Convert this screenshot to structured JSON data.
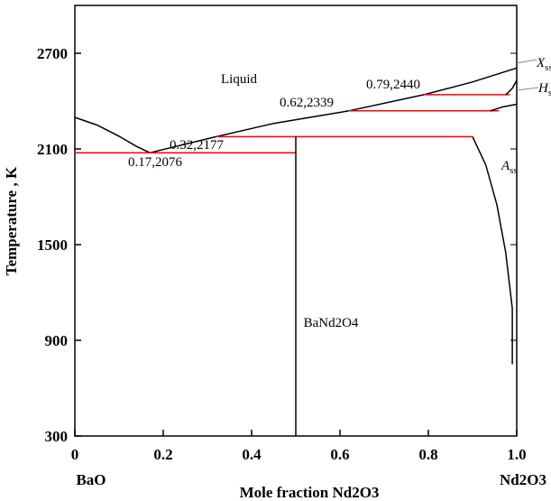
{
  "chart_data": {
    "type": "line",
    "x_label": "Mole fraction Nd2O3",
    "y_label": "Temperature , K",
    "end_labels": [
      "BaO",
      "Nd2O3"
    ],
    "xlim": [
      0,
      1
    ],
    "ylim": [
      300,
      3000
    ],
    "xticks": [
      0,
      0.2,
      0.4,
      0.6,
      0.8,
      {
        "value": 1,
        "label": "1.0"
      }
    ],
    "yticks": [
      300,
      900,
      1500,
      2100,
      2700
    ],
    "curves": [
      {
        "color": "#000000",
        "x": [
          0,
          0.05,
          0.1,
          0.14,
          0.17
        ],
        "values": [
          2298,
          2250,
          2180,
          2115,
          2076
        ]
      },
      {
        "color": "#000000",
        "x": [
          0.17,
          0.32,
          0.45,
          0.62,
          0.79,
          0.9,
          1
        ],
        "values": [
          2076,
          2177,
          2260,
          2339,
          2440,
          2520,
          2608
        ]
      },
      {
        "color": "#e01010",
        "x": [
          0,
          0.5
        ],
        "values": [
          2076,
          2076
        ]
      },
      {
        "color": "#e01010",
        "x": [
          0.32,
          0.9
        ],
        "values": [
          2177,
          2177
        ]
      },
      {
        "color": "#e01010",
        "x": [
          0.62,
          0.96
        ],
        "values": [
          2339,
          2339
        ]
      },
      {
        "color": "#e01010",
        "x": [
          0.79,
          0.985
        ],
        "values": [
          2440,
          2440
        ]
      },
      {
        "color": "#000000",
        "x": [
          0.5,
          0.5
        ],
        "values": [
          300,
          2177
        ]
      },
      {
        "color": "#000000",
        "x": [
          0.9,
          0.93,
          0.955,
          0.975,
          0.99,
          0.99
        ],
        "values": [
          2177,
          2000,
          1750,
          1450,
          1100,
          750
        ]
      },
      {
        "color": "#000000",
        "x": [
          0.94,
          0.97,
          1
        ],
        "values": [
          2339,
          2365,
          2380
        ]
      },
      {
        "color": "#000000",
        "x": [
          0.975,
          0.99,
          1
        ],
        "values": [
          2440,
          2480,
          2530
        ]
      }
    ],
    "annotations": [
      {
        "text": "Liquid"
      },
      {
        "text": "0.17,2076"
      },
      {
        "text": "0.32,2177"
      },
      {
        "text": "0.62,2339"
      },
      {
        "text": "0.79,2440"
      },
      {
        "text": "BaNd2O4"
      },
      {
        "text": "A",
        "sub": "ss"
      },
      {
        "text": "H",
        "sub": "ss"
      },
      {
        "text": "X",
        "sub": "ss"
      }
    ]
  }
}
